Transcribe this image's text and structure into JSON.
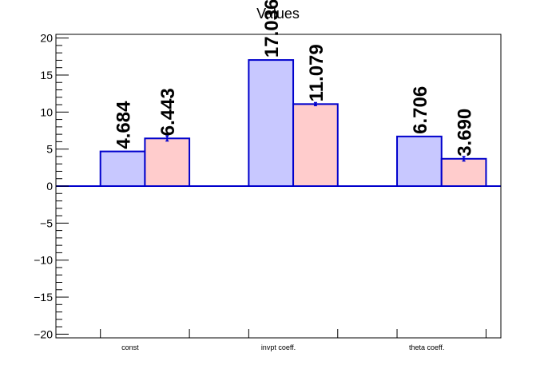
{
  "chart_data": {
    "type": "bar",
    "title": "Values",
    "xlabel": "",
    "ylabel": "",
    "ylim": [
      -20.5,
      20.5
    ],
    "yticks": [
      -20,
      -15,
      -10,
      -5,
      0,
      5,
      10,
      15,
      20
    ],
    "ytick_labels": [
      "−20",
      "−15",
      "−10",
      "−5",
      "0",
      "5",
      "10",
      "15",
      "20"
    ],
    "categories": [
      "const",
      "invpt coeff.",
      "theta coeff."
    ],
    "series": [
      {
        "values": [
          4.684,
          17.036,
          6.706
        ],
        "labels": [
          "4.684",
          "17.036",
          "6.706"
        ],
        "errors": [
          0,
          0,
          0
        ],
        "fill": "#c8c8ff",
        "stroke": "#0000cc"
      },
      {
        "values": [
          6.443,
          11.079,
          3.69
        ],
        "labels": [
          "6.443",
          "11.079",
          "3.690"
        ],
        "errors": [
          0.35,
          0.2,
          0.3
        ],
        "fill": "#ffcccc",
        "stroke": "#0000cc"
      }
    ],
    "grid": false,
    "legend": "none",
    "axis_color": "#000000",
    "zero_line_color": "#0000cc"
  }
}
